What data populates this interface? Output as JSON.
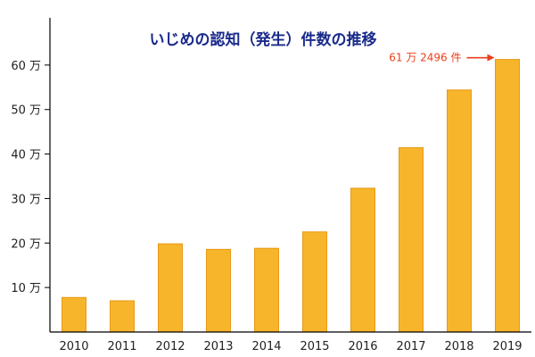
{
  "chart_data": {
    "type": "bar",
    "title": "いじめの認知（発生）件数の推移",
    "xlabel": "",
    "ylabel": "",
    "categories": [
      "2010",
      "2011",
      "2012",
      "2013",
      "2014",
      "2015",
      "2016",
      "2017",
      "2018",
      "2019"
    ],
    "values": [
      77630,
      70231,
      198109,
      185803,
      188072,
      225132,
      323143,
      414378,
      543933,
      612496
    ],
    "ylim": [
      0,
      690000
    ],
    "yticks": [
      {
        "value": 100000,
        "label": "10 万"
      },
      {
        "value": 200000,
        "label": "20 万"
      },
      {
        "value": 300000,
        "label": "30 万"
      },
      {
        "value": 400000,
        "label": "40 万"
      },
      {
        "value": 500000,
        "label": "50 万"
      },
      {
        "value": 600000,
        "label": "60 万"
      }
    ],
    "grid": false,
    "annotation": {
      "text": "61 万 2496 件",
      "target_category": "2019"
    },
    "colors": {
      "bar": "#f7b52c",
      "bar_edge": "#e79a16",
      "annotation": "#e8401c",
      "title": "#1a2a8a",
      "axis": "#000000"
    }
  }
}
